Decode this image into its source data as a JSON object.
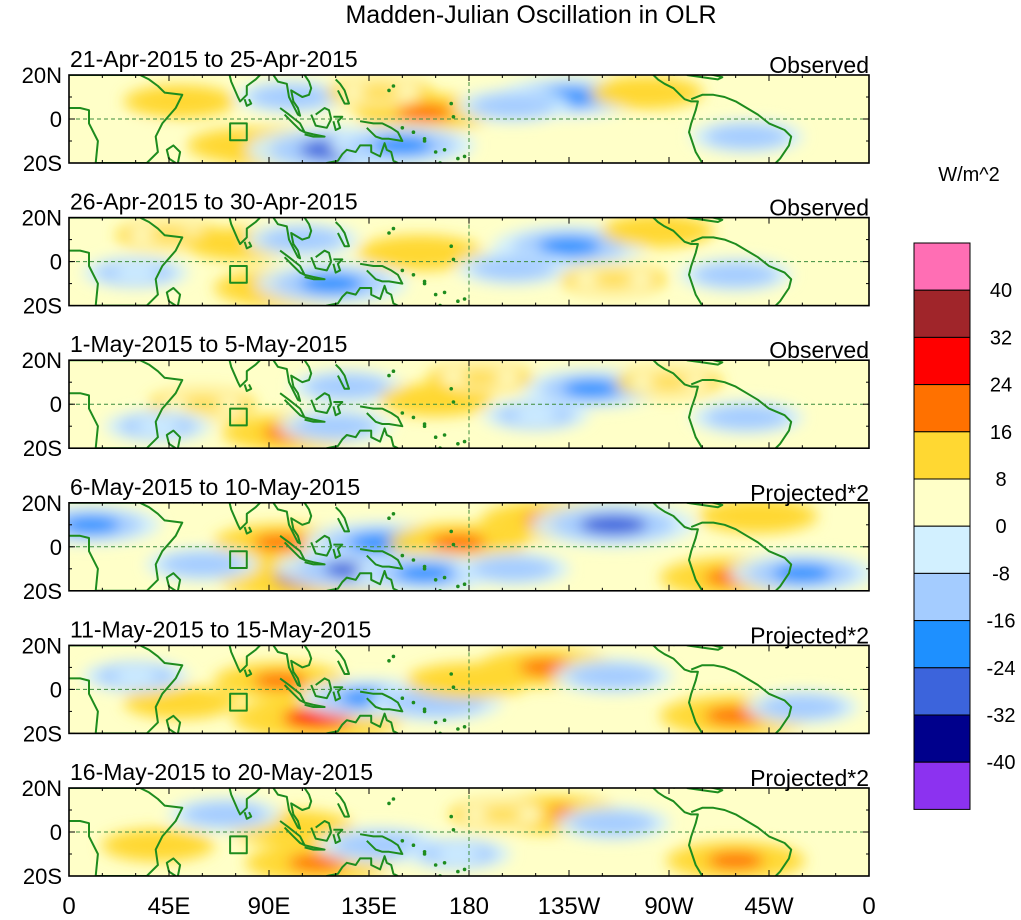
{
  "chart_data": {
    "type": "heatmap",
    "title": "Madden-Julian Oscillation in OLR",
    "units": "W/m^2",
    "x_ticks": [
      "0",
      "45E",
      "90E",
      "135E",
      "180",
      "135W",
      "90W",
      "45W",
      "0"
    ],
    "y_ticks": [
      "20N",
      "0",
      "20S"
    ],
    "xlim": [
      0,
      360
    ],
    "ylim": [
      -20,
      20
    ],
    "grid": "dashed lines at equator and 180",
    "colorbar": {
      "labels": [
        "40",
        "32",
        "24",
        "16",
        "8",
        "0",
        "-8",
        "-16",
        "-24",
        "-32",
        "-40"
      ],
      "colors": [
        "#ff6eb4",
        "#a0252a",
        "#ff0000",
        "#ff7100",
        "#ffd832",
        "#ffffc8",
        "#d2f0ff",
        "#a4ccff",
        "#1e90ff",
        "#3c64dc",
        "#00008c",
        "#8c32f0"
      ]
    },
    "panels": [
      {
        "period": "21-Apr-2015 to 25-Apr-2015",
        "label": "Observed",
        "anomalies": [
          {
            "lon": 50,
            "lat": 8,
            "value": 10
          },
          {
            "lon": 95,
            "lat": -13,
            "value": 22
          },
          {
            "lon": 80,
            "lat": -12,
            "value": 12
          },
          {
            "lon": 120,
            "lat": -14,
            "value": -30
          },
          {
            "lon": 100,
            "lat": 10,
            "value": -10
          },
          {
            "lon": 160,
            "lat": 3,
            "value": 18
          },
          {
            "lon": 140,
            "lat": 12,
            "value": 8
          },
          {
            "lon": 150,
            "lat": -12,
            "value": -20
          },
          {
            "lon": 225,
            "lat": 10,
            "value": -20
          },
          {
            "lon": 200,
            "lat": 6,
            "value": -10
          },
          {
            "lon": 260,
            "lat": 12,
            "value": 10
          },
          {
            "lon": 305,
            "lat": -8,
            "value": -10
          },
          {
            "lon": 240,
            "lat": -6,
            "value": 6
          },
          {
            "lon": 25,
            "lat": -10,
            "value": 6
          }
        ]
      },
      {
        "period": "26-Apr-2015 to 30-Apr-2015",
        "label": "Observed",
        "anomalies": [
          {
            "lon": 45,
            "lat": 12,
            "value": 8
          },
          {
            "lon": 98,
            "lat": -12,
            "value": 20
          },
          {
            "lon": 78,
            "lat": 8,
            "value": 10
          },
          {
            "lon": 118,
            "lat": -10,
            "value": -22
          },
          {
            "lon": 105,
            "lat": 10,
            "value": -10
          },
          {
            "lon": 158,
            "lat": 4,
            "value": 14
          },
          {
            "lon": 225,
            "lat": 7,
            "value": -22
          },
          {
            "lon": 200,
            "lat": -3,
            "value": -10
          },
          {
            "lon": 265,
            "lat": 14,
            "value": 10
          },
          {
            "lon": 300,
            "lat": -6,
            "value": -10
          },
          {
            "lon": 245,
            "lat": -8,
            "value": 8
          },
          {
            "lon": 30,
            "lat": -5,
            "value": -8
          }
        ]
      },
      {
        "period": "1-May-2015 to 5-May-2015",
        "label": "Observed",
        "anomalies": [
          {
            "lon": 100,
            "lat": -13,
            "value": 18
          },
          {
            "lon": 60,
            "lat": 0,
            "value": 8
          },
          {
            "lon": 125,
            "lat": 8,
            "value": -10
          },
          {
            "lon": 120,
            "lat": -10,
            "value": -10
          },
          {
            "lon": 165,
            "lat": 2,
            "value": 10
          },
          {
            "lon": 235,
            "lat": 7,
            "value": -18
          },
          {
            "lon": 210,
            "lat": -5,
            "value": -8
          },
          {
            "lon": 185,
            "lat": 12,
            "value": 8
          },
          {
            "lon": 270,
            "lat": 10,
            "value": 8
          },
          {
            "lon": 305,
            "lat": -6,
            "value": -10
          },
          {
            "lon": 40,
            "lat": -10,
            "value": -8
          }
        ]
      },
      {
        "period": "6-May-2015 to 10-May-2015",
        "label": "Projected*2",
        "anomalies": [
          {
            "lon": 110,
            "lat": -14,
            "value": 34
          },
          {
            "lon": 95,
            "lat": 2,
            "value": 16
          },
          {
            "lon": 130,
            "lat": -10,
            "value": -26
          },
          {
            "lon": 140,
            "lat": 2,
            "value": -22
          },
          {
            "lon": 175,
            "lat": 2,
            "value": 18
          },
          {
            "lon": 218,
            "lat": 12,
            "value": 20
          },
          {
            "lon": 245,
            "lat": 10,
            "value": -26
          },
          {
            "lon": 300,
            "lat": -14,
            "value": 22
          },
          {
            "lon": 330,
            "lat": -12,
            "value": -20
          },
          {
            "lon": 310,
            "lat": 14,
            "value": 12
          },
          {
            "lon": 160,
            "lat": -12,
            "value": -18
          },
          {
            "lon": 60,
            "lat": -8,
            "value": -10
          },
          {
            "lon": 10,
            "lat": 10,
            "value": -18
          },
          {
            "lon": 200,
            "lat": -10,
            "value": -10
          }
        ]
      },
      {
        "period": "11-May-2015 to 15-May-2015",
        "label": "Projected*2",
        "anomalies": [
          {
            "lon": 112,
            "lat": -13,
            "value": 28
          },
          {
            "lon": 95,
            "lat": 4,
            "value": 16
          },
          {
            "lon": 135,
            "lat": -4,
            "value": -18
          },
          {
            "lon": 165,
            "lat": -6,
            "value": -16
          },
          {
            "lon": 215,
            "lat": 10,
            "value": 18
          },
          {
            "lon": 245,
            "lat": 6,
            "value": -12
          },
          {
            "lon": 300,
            "lat": -12,
            "value": 22
          },
          {
            "lon": 330,
            "lat": -8,
            "value": -10
          },
          {
            "lon": 50,
            "lat": -6,
            "value": 10
          },
          {
            "lon": 30,
            "lat": 6,
            "value": -8
          },
          {
            "lon": 180,
            "lat": 4,
            "value": 14
          }
        ]
      },
      {
        "period": "16-May-2015 to 20-May-2015",
        "label": "Projected*2",
        "anomalies": [
          {
            "lon": 112,
            "lat": -14,
            "value": 20
          },
          {
            "lon": 100,
            "lat": 2,
            "value": 14
          },
          {
            "lon": 140,
            "lat": -6,
            "value": -14
          },
          {
            "lon": 218,
            "lat": 8,
            "value": 18
          },
          {
            "lon": 245,
            "lat": 4,
            "value": -10
          },
          {
            "lon": 300,
            "lat": -13,
            "value": 18
          },
          {
            "lon": 40,
            "lat": -6,
            "value": 10
          },
          {
            "lon": 70,
            "lat": 8,
            "value": -10
          },
          {
            "lon": 175,
            "lat": -10,
            "value": -8
          },
          {
            "lon": 195,
            "lat": 8,
            "value": 8
          }
        ]
      }
    ]
  }
}
